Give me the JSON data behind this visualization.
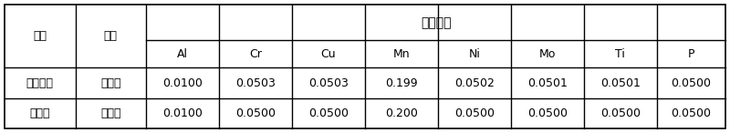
{
  "title_row": [
    "名称",
    "项目",
    "化学成分"
  ],
  "element_headers": [
    "Al",
    "Cr",
    "Cu",
    "Mn",
    "Ni",
    "Mo",
    "Ti",
    "P"
  ],
  "row1_label1": "多元素标",
  "row1_label2": "测定值",
  "row1_values": [
    "0.0100",
    "0.0503",
    "0.0503",
    "0.199",
    "0.0502",
    "0.0501",
    "0.0501",
    "0.0500"
  ],
  "row2_label1": "准溶液",
  "row2_label2": "标准值",
  "row2_values": [
    "0.0100",
    "0.0500",
    "0.0500",
    "0.200",
    "0.0500",
    "0.0500",
    "0.0500",
    "0.0500"
  ],
  "bg_color": "#ffffff",
  "line_color": "#000000",
  "font_size": 9
}
